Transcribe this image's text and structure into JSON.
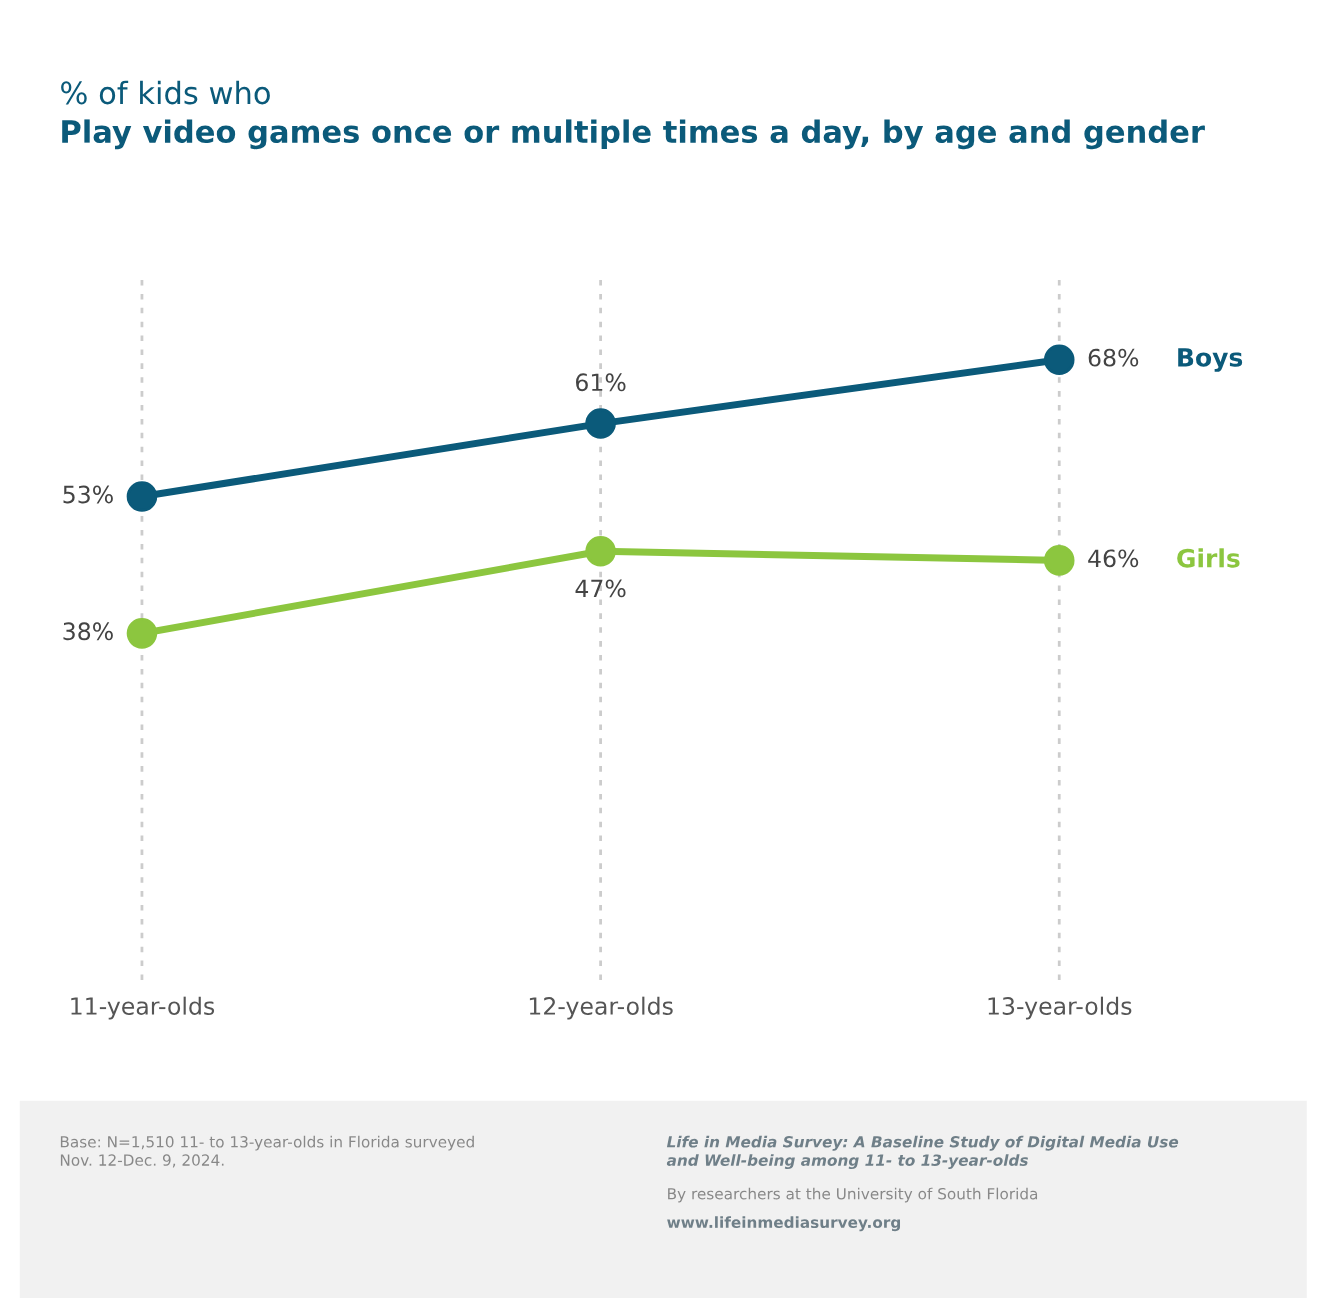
{
  "chart_data": {
    "type": "line",
    "subtitle": "% of kids who",
    "title": "Play video games once or multiple times a day, by age and gender",
    "categories": [
      "11-year-olds",
      "12-year-olds",
      "13-year-olds"
    ],
    "series": [
      {
        "name": "Boys",
        "color": "#0b5a7a",
        "values": [
          53,
          61,
          68
        ],
        "value_labels": [
          "53%",
          "61%",
          "68%"
        ]
      },
      {
        "name": "Girls",
        "color": "#8cc63f",
        "values": [
          38,
          47,
          46
        ],
        "value_labels": [
          "38%",
          "47%",
          "46%"
        ]
      }
    ],
    "tick_labels": "x",
    "grid": "x",
    "marker": "circle",
    "line_style": "solid",
    "annotations": [
      "Base: N=1,510 11- to 13-year-olds in Florida surveyed\nNov. 12-Dec. 9, 2024.",
      "Life in Media Survey: A Baseline Study of Digital Media Use\nand Well-being among 11- to 13-year-olds",
      "By researchers at the University of South Florida",
      "www.lifeinmediasurvey.org"
    ]
  }
}
